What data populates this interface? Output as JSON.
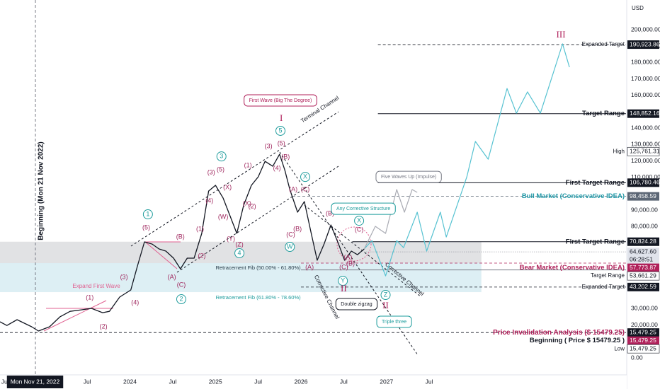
{
  "chart_data": {
    "type": "line",
    "currency": "USD",
    "xlim": [
      2022.48,
      2029.81
    ],
    "ylim": [
      -10300,
      218100
    ],
    "xticks": [
      {
        "value": 2022.54,
        "label": "Jul"
      },
      {
        "value": 2022.89,
        "label": "Mon Nov 21, 2022"
      },
      {
        "value": 2023.5,
        "label": "Jul"
      },
      {
        "value": 2024,
        "label": "2024"
      },
      {
        "value": 2024.5,
        "label": "Jul"
      },
      {
        "value": 2025,
        "label": "2025"
      },
      {
        "value": 2025.5,
        "label": "Jul"
      },
      {
        "value": 2026,
        "label": "2026"
      },
      {
        "value": 2026.5,
        "label": "Jul"
      },
      {
        "value": 2027,
        "label": "2027"
      },
      {
        "value": 2027.5,
        "label": "Jul"
      }
    ],
    "xtick_highlight": 1,
    "yticks": [
      {
        "value": 200000,
        "label": "200,000.00"
      },
      {
        "value": 190000,
        "label": "190,000.00"
      },
      {
        "value": 180000,
        "label": "180,000.00"
      },
      {
        "value": 170000,
        "label": "170,000.00"
      },
      {
        "value": 160000,
        "label": "160,000.00"
      },
      {
        "value": 140000,
        "label": "140,000.00"
      },
      {
        "value": 130000,
        "label": "130,000.00"
      },
      {
        "value": 120000,
        "label": "120,000.00"
      },
      {
        "value": 110000,
        "label": "110,000.00"
      },
      {
        "value": 90000,
        "label": "90,000.00"
      },
      {
        "value": 80000,
        "label": "80,000.00"
      },
      {
        "value": 30000,
        "label": "30,000.00"
      },
      {
        "value": 20000,
        "label": "20,000.00"
      },
      {
        "value": 0,
        "label": "0.00"
      }
    ],
    "series": [
      {
        "color": "#131722",
        "width": 1.3,
        "x": [
          2022.48,
          2022.56,
          2022.68,
          2022.85,
          2022.93,
          2023.06,
          2023.18,
          2023.3,
          2023.43,
          2023.55,
          2023.68,
          2023.76,
          2023.88,
          2024.01,
          2024.09,
          2024.17,
          2024.26,
          2024.34,
          2024.42,
          2024.51,
          2024.59,
          2024.67,
          2024.75,
          2024.84,
          2024.92,
          2025.0,
          2025.09,
          2025.17,
          2025.25,
          2025.33,
          2025.42,
          2025.5,
          2025.58,
          2025.67,
          2025.75,
          2025.81,
          2025.87,
          2025.96,
          2026.04,
          2026.12,
          2026.19,
          2026.27,
          2026.35,
          2026.44,
          2026.51,
          2026.59,
          2026.66,
          2026.74
        ],
        "values": [
          22000,
          19800,
          23300,
          19000,
          16400,
          19000,
          25000,
          28400,
          29300,
          30200,
          27600,
          28400,
          37100,
          41400,
          56500,
          70700,
          69400,
          66400,
          65100,
          60800,
          54300,
          60800,
          60800,
          75900,
          101700,
          105200,
          97400,
          86600,
          75900,
          93100,
          105200,
          110300,
          119800,
          116800,
          124100,
          114600,
          102600,
          88800,
          95300,
          75900,
          59500,
          69400,
          81000,
          69400,
          59500,
          65100,
          62900,
          66400
        ]
      },
      {
        "color": "#56c2d1",
        "width": 1.2,
        "x": [
          2026.74,
          2026.83,
          2026.99,
          2027.12,
          2027.2,
          2027.36,
          2027.47,
          2027.63,
          2027.7,
          2027.94,
          2028.04,
          2028.19,
          2028.41,
          2028.52,
          2028.65,
          2028.8,
          2029.06,
          2029.14
        ],
        "values": [
          66400,
          71500,
          50000,
          71500,
          67200,
          88800,
          65100,
          88800,
          73700,
          110300,
          131900,
          121100,
          164200,
          149100,
          162100,
          149100,
          191400,
          177200
        ]
      },
      {
        "color": "#a9abb3",
        "width": 1.2,
        "x": [
          2026.74,
          2026.87,
          2026.99,
          2027.12,
          2027.21,
          2027.3,
          2027.36
        ],
        "values": [
          66400,
          80200,
          75900,
          102600,
          88800,
          102600,
          100900
        ]
      }
    ],
    "zones": [
      {
        "label": "Retracement Fib (50.00% - 61.80%)",
        "range": [
          57773.87,
          70824.28
        ],
        "xlim": [
          2022.48,
          2028.11
        ],
        "fill": "rgba(120,123,134,0.22)",
        "label_color": "#131722"
      },
      {
        "label": "Retracement Fib (61.80% - 78.60%)",
        "range": [
          40100,
          57773.87
        ],
        "xlim": [
          2022.48,
          2028.11
        ],
        "fill": "rgba(100,181,205,0.22)",
        "label_color": "#1e9c9c"
      }
    ],
    "levels": [
      {
        "name": "Expanded Target",
        "label": "190,923.86",
        "value": 190923.86,
        "from": 2026.9,
        "bg": "#131722",
        "fg": "#ffffff",
        "name_color": "#131722",
        "bold": false,
        "line": "dash"
      },
      {
        "name": "Target Range",
        "label": "148,852.16",
        "value": 148852.16,
        "from": 2026.9,
        "bg": "#131722",
        "fg": "#ffffff",
        "name_color": "#131722",
        "bold": true,
        "line": "solid"
      },
      {
        "name": "High",
        "label": "125,761.31",
        "value": 125761.31,
        "bg": "#ffffff",
        "fg": "#131722",
        "name_color": "#131722",
        "bold": false
      },
      {
        "name": "First Target Range",
        "label": "106,780.46",
        "value": 106780.46,
        "from": 2026.9,
        "bg": "#131722",
        "fg": "#ffffff",
        "name_color": "#131722",
        "bold": true,
        "line": "solid"
      },
      {
        "name": "Bull Market (Conservative IDEA)",
        "label": "98,458.59",
        "value": 98458.59,
        "from": 2025.9,
        "bg": "#5b6675",
        "fg": "#ffffff",
        "name_color": "#1f97a6",
        "bold": true,
        "line": "dash"
      },
      {
        "name": "First Target Range",
        "label": "70,824.28",
        "value": 70824.28,
        "from": 2026.6,
        "bg": "#131722",
        "fg": "#ffffff",
        "name_color": "#131722",
        "bold": true,
        "line": "solid"
      },
      {
        "label": "64,627.60",
        "countdown": "06:28:51",
        "value": 64627.6,
        "bg": "#e0e3eb",
        "fg": "#131722",
        "line": "dot",
        "from": 2026.74
      },
      {
        "name": "Bear Market (Conservative IDEA)",
        "label": "57,773.87",
        "value": 57773.87,
        "from": 2026.0,
        "bg": "#b0205a",
        "fg": "#ffffff",
        "name_color": "#b0205a",
        "bold": true,
        "line": "dash"
      },
      {
        "name": "Target Range",
        "label": "53,661.29",
        "value": 53661.29,
        "from": 2026.0,
        "bg": "#ffffff",
        "fg": "#131722",
        "name_color": "#131722",
        "bold": false,
        "line": "solid"
      },
      {
        "name": "Expanded Target",
        "label": "43,202.59",
        "value": 43202.59,
        "from": 2026.0,
        "bg": "#131722",
        "fg": "#ffffff",
        "name_color": "#131722",
        "bold": false,
        "line": "dash"
      },
      {
        "name": "Price Invalidation Analysis ($ 15479.25)",
        "label": "15,479.25",
        "value": 15479.25,
        "from": 2022.48,
        "bg": "#131722",
        "fg": "#ffffff",
        "name_color": "#b0205a",
        "bold": true,
        "line": "dash"
      },
      {
        "name": "Beginning ( Price $ 15479.25 )",
        "label": "15,479.25",
        "value": 15479.25,
        "bg": "#b0205a",
        "fg": "#ffffff",
        "name_color": "#131722",
        "bold": true
      },
      {
        "name": "Low",
        "label": "15,479.25",
        "value": 15479.25,
        "bg": "#ffffff",
        "fg": "#131722",
        "name_color": "#131722",
        "bold": false
      }
    ],
    "annotations": [
      {
        "style": "paren",
        "color": "#a0285f",
        "items": [
          {
            "text": "(1)",
            "x": 2023.53,
            "y": 36600
          },
          {
            "text": "(2)",
            "x": 2023.69,
            "y": 19000
          },
          {
            "text": "(3)",
            "x": 2023.93,
            "y": 49100
          },
          {
            "text": "(4)",
            "x": 2024.06,
            "y": 33600
          },
          {
            "text": "(5)",
            "x": 2024.19,
            "y": 79300
          },
          {
            "text": "(A)",
            "x": 2024.49,
            "y": 49100
          },
          {
            "text": "(B)",
            "x": 2024.59,
            "y": 73700
          },
          {
            "text": "(C)",
            "x": 2024.6,
            "y": 44400
          },
          {
            "text": "(1)",
            "x": 2024.82,
            "y": 78400
          },
          {
            "text": "(2)",
            "x": 2024.84,
            "y": 62100
          },
          {
            "text": "(3)",
            "x": 2024.95,
            "y": 112900
          },
          {
            "text": "(4)",
            "x": 2024.93,
            "y": 95700
          },
          {
            "text": "(5)",
            "x": 2025.06,
            "y": 114600
          },
          {
            "text": "(W)",
            "x": 2025.09,
            "y": 85800
          },
          {
            "text": "(X)",
            "x": 2025.14,
            "y": 103900
          },
          {
            "text": "(Y)",
            "x": 2025.18,
            "y": 72400
          },
          {
            "text": "(Z)",
            "x": 2025.28,
            "y": 69000
          },
          {
            "text": "(X)",
            "x": 2025.37,
            "y": 94000
          },
          {
            "text": "(1)",
            "x": 2025.38,
            "y": 117200
          },
          {
            "text": "(2)",
            "x": 2025.43,
            "y": 92200
          },
          {
            "text": "(3)",
            "x": 2025.62,
            "y": 128900
          },
          {
            "text": "(4)",
            "x": 2025.72,
            "y": 115500
          },
          {
            "text": "(5)",
            "x": 2025.77,
            "y": 130600
          },
          {
            "text": "(B)",
            "x": 2025.82,
            "y": 122400
          },
          {
            "text": "(A)",
            "x": 2025.91,
            "y": 102600
          },
          {
            "text": "(C)",
            "x": 2026.05,
            "y": 102600
          },
          {
            "text": "(C)",
            "x": 2025.88,
            "y": 75000
          },
          {
            "text": "(B)",
            "x": 2025.96,
            "y": 78400
          },
          {
            "text": "(A)",
            "x": 2026.1,
            "y": 55200
          },
          {
            "text": "(B)",
            "x": 2026.34,
            "y": 87900
          },
          {
            "text": "(C)",
            "x": 2026.68,
            "y": 78000
          },
          {
            "text": "(A)",
            "x": 2026.55,
            "y": 61200
          },
          {
            "text": "(B)",
            "x": 2026.58,
            "y": 57300
          },
          {
            "text": "(C)",
            "x": 2026.5,
            "y": 55200
          }
        ]
      },
      {
        "style": "circle",
        "color": "#1e9c9c",
        "items": [
          {
            "text": "1",
            "x": 2024.21,
            "y": 87500
          },
          {
            "text": "2",
            "x": 2024.6,
            "y": 35800
          },
          {
            "text": "3",
            "x": 2025.07,
            "y": 122800
          },
          {
            "text": "4",
            "x": 2025.28,
            "y": 63800
          },
          {
            "text": "5",
            "x": 2025.76,
            "y": 138400
          },
          {
            "text": "W",
            "x": 2025.87,
            "y": 67700
          },
          {
            "text": "X",
            "x": 2026.05,
            "y": 110300
          },
          {
            "text": "Y",
            "x": 2026.49,
            "y": 47000
          },
          {
            "text": "X",
            "x": 2026.68,
            "y": 83600
          },
          {
            "text": "Z",
            "x": 2026.99,
            "y": 38400
          }
        ]
      },
      {
        "style": "roman",
        "color": "#b0205a",
        "items": [
          {
            "text": "I",
            "x": 2025.77,
            "y": 145700
          },
          {
            "text": "II",
            "x": 2026.5,
            "y": 41800
          },
          {
            "text": "II",
            "x": 2026.99,
            "y": 31500
          },
          {
            "text": "III",
            "x": 2029.04,
            "y": 196500
          }
        ]
      },
      {
        "style": "box",
        "items": [
          {
            "text": "First Wave (Big The Degree)",
            "x": 2025.76,
            "y": 156900,
            "color": "#b0205a"
          },
          {
            "text": "Five Waves Up (Impulse)",
            "x": 2027.26,
            "y": 110300,
            "color": "#787b86"
          },
          {
            "text": "Any Corrective Structure",
            "x": 2026.73,
            "y": 90900,
            "color": "#1e9c9c"
          },
          {
            "text": "Double zigzag",
            "x": 2026.65,
            "y": 32800,
            "color": "#131722"
          },
          {
            "text": "Triple three",
            "x": 2027.09,
            "y": 22000,
            "color": "#1e9c9c"
          }
        ]
      }
    ],
    "notes": {
      "terminal_channel": "Terminal Channel",
      "corrective_channel_1": "Corrective Channel",
      "corrective_channel_2": "Corrective Channel",
      "expand_first_wave": "Expand First Wave",
      "beginning": "Beginning (Mon 21 Nov 2022)"
    }
  }
}
